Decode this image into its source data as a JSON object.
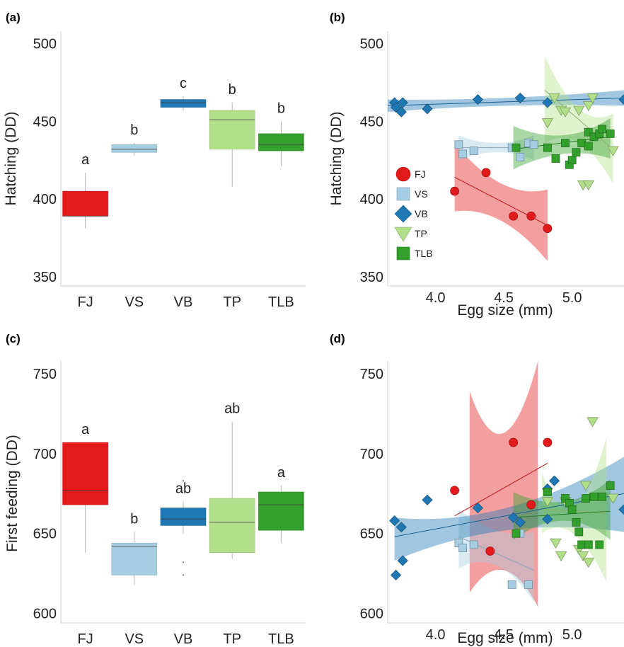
{
  "colors": {
    "FJ": "#e31a1c",
    "VS": "#a6cee3",
    "VB": "#1f78b4",
    "TP": "#b2df8a",
    "TLB": "#33a02c"
  },
  "chart_data": [
    {
      "panel": "(a)",
      "type": "box",
      "categories": [
        "FJ",
        "VS",
        "VB",
        "TP",
        "TLB"
      ],
      "ylabel": "Hatching (DD)",
      "ylim": [
        344,
        508
      ],
      "yticks": [
        350,
        400,
        450,
        500
      ],
      "boxes": [
        {
          "name": "FJ",
          "whisker_low": 381,
          "q1": 389,
          "median": 389,
          "q3": 405,
          "whisker_high": 417,
          "sig": "a"
        },
        {
          "name": "VS",
          "whisker_low": 428,
          "q1": 430,
          "median": 432,
          "q3": 435,
          "whisker_high": 436,
          "sig": "b"
        },
        {
          "name": "VB",
          "whisker_low": 457,
          "q1": 459,
          "median": 462,
          "q3": 464,
          "whisker_high": 466,
          "sig": "c"
        },
        {
          "name": "TP",
          "whisker_low": 408,
          "q1": 432,
          "median": 451,
          "q3": 457,
          "whisker_high": 462,
          "sig": "b"
        },
        {
          "name": "TLB",
          "whisker_low": 421,
          "q1": 431,
          "median": 435,
          "q3": 442,
          "whisker_high": 450,
          "sig": "b"
        }
      ]
    },
    {
      "panel": "(b)",
      "type": "scatter",
      "xlabel": "Egg size (mm)",
      "ylabel": "Hatching (DD)",
      "xlim": [
        3.65,
        5.38
      ],
      "ylim": [
        344,
        508
      ],
      "xticks": [
        "4.0",
        "4.5",
        "5.0"
      ],
      "yticks": [
        350,
        400,
        450,
        500
      ],
      "legend_position": "left",
      "series": [
        {
          "name": "FJ",
          "marker": "circle",
          "points": [
            [
              4.14,
              405
            ],
            [
              4.37,
              417
            ],
            [
              4.57,
              389
            ],
            [
              4.7,
              389
            ],
            [
              4.82,
              381
            ]
          ],
          "fit": [
            [
              4.14,
              414
            ],
            [
              4.82,
              383
            ]
          ],
          "band": [
            [
              4.14,
              436,
              392
            ],
            [
              4.48,
              410,
              386
            ],
            [
              4.82,
              406,
              360
            ]
          ]
        },
        {
          "name": "VS",
          "marker": "square",
          "points": [
            [
              4.17,
              435
            ],
            [
              4.2,
              429
            ],
            [
              4.28,
              431
            ],
            [
              4.56,
              433
            ],
            [
              4.62,
              427
            ],
            [
              4.68,
              436
            ],
            [
              4.72,
              435
            ]
          ],
          "fit": [
            [
              4.17,
              433
            ],
            [
              4.72,
              433
            ]
          ],
          "band": [
            [
              4.17,
              441,
              425
            ],
            [
              4.45,
              436,
              430
            ],
            [
              4.72,
              441,
              425
            ]
          ]
        },
        {
          "name": "VB",
          "marker": "diamond",
          "points": [
            [
              3.7,
              462
            ],
            [
              3.71,
              459
            ],
            [
              3.75,
              456
            ],
            [
              3.76,
              462
            ],
            [
              3.94,
              458
            ],
            [
              4.31,
              464
            ],
            [
              4.62,
              465
            ],
            [
              4.82,
              462
            ],
            [
              5.38,
              464
            ]
          ],
          "fit": [
            [
              3.65,
              460
            ],
            [
              5.38,
              465
            ]
          ],
          "band": [
            [
              3.65,
              464,
              456
            ],
            [
              4.5,
              465,
              460
            ],
            [
              5.38,
              470,
              460
            ]
          ]
        },
        {
          "name": "TP",
          "marker": "triangle",
          "points": [
            [
              4.82,
              449
            ],
            [
              4.87,
              465
            ],
            [
              4.92,
              457
            ],
            [
              4.95,
              456
            ],
            [
              5.05,
              457
            ],
            [
              5.08,
              409
            ],
            [
              5.12,
              409
            ],
            [
              5.12,
              460
            ],
            [
              5.15,
              465
            ],
            [
              5.3,
              431
            ]
          ],
          "fit": [
            [
              4.8,
              470
            ],
            [
              5.3,
              432
            ]
          ],
          "band": [
            [
              4.8,
              492,
              436
            ],
            [
              5.05,
              458,
              436
            ],
            [
              5.3,
              455,
              410
            ]
          ]
        },
        {
          "name": "TLB",
          "marker": "square",
          "points": [
            [
              4.59,
              433
            ],
            [
              4.82,
              433
            ],
            [
              4.88,
              426
            ],
            [
              4.95,
              436
            ],
            [
              4.98,
              422
            ],
            [
              5.0,
              425
            ],
            [
              5.03,
              430
            ],
            [
              5.07,
              436
            ],
            [
              5.12,
              434
            ],
            [
              5.12,
              443
            ],
            [
              5.16,
              440
            ],
            [
              5.2,
              442
            ],
            [
              5.22,
              445
            ],
            [
              5.28,
              442
            ]
          ],
          "fit": [
            [
              4.57,
              432
            ],
            [
              5.28,
              440
            ]
          ],
          "band": [
            [
              4.57,
              447,
              419
            ],
            [
              4.95,
              441,
              429
            ],
            [
              5.28,
              452,
              426
            ]
          ]
        }
      ]
    },
    {
      "panel": "(c)",
      "type": "box",
      "categories": [
        "FJ",
        "VS",
        "VB",
        "TP",
        "TLB"
      ],
      "ylabel": "First feeding (DD)",
      "ylim": [
        594,
        758
      ],
      "yticks": [
        600,
        650,
        700,
        750
      ],
      "boxes": [
        {
          "name": "FJ",
          "whisker_low": 638,
          "q1": 668,
          "median": 677,
          "q3": 707,
          "whisker_high": 707,
          "sig": "a"
        },
        {
          "name": "VS",
          "whisker_low": 618,
          "q1": 624,
          "median": 642,
          "q3": 644,
          "whisker_high": 651,
          "sig": "b"
        },
        {
          "name": "VB",
          "whisker_low": 650,
          "q1": 655,
          "median": 659,
          "q3": 666,
          "whisker_high": 670,
          "outliers": [
            632,
            624,
            683
          ],
          "sig": "ab"
        },
        {
          "name": "TP",
          "whisker_low": 634,
          "q1": 638,
          "median": 657,
          "q3": 672,
          "whisker_high": 720,
          "sig": "ab"
        },
        {
          "name": "TLB",
          "whisker_low": 644,
          "q1": 652,
          "median": 668,
          "q3": 676,
          "whisker_high": 680,
          "sig": "a"
        }
      ]
    },
    {
      "panel": "(d)",
      "type": "scatter",
      "xlabel": "Egg size (mm)",
      "ylabel": "",
      "xlim": [
        3.65,
        5.38
      ],
      "ylim": [
        594,
        758
      ],
      "xticks": [
        "4.0",
        "4.5",
        "5.0"
      ],
      "yticks": [
        600,
        650,
        700,
        750
      ],
      "series": [
        {
          "name": "FJ",
          "marker": "circle",
          "points": [
            [
              4.14,
              677
            ],
            [
              4.4,
              639
            ],
            [
              4.57,
              707
            ],
            [
              4.7,
              668
            ],
            [
              4.82,
              707
            ]
          ],
          "fit": [
            [
              4.14,
              661
            ],
            [
              4.82,
              694
            ]
          ],
          "band": [
            [
              4.25,
              739,
              613
            ],
            [
              4.5,
              713,
              627
            ],
            [
              4.75,
              758,
              604
            ]
          ]
        },
        {
          "name": "VS",
          "marker": "square",
          "points": [
            [
              4.17,
              644
            ],
            [
              4.2,
              641
            ],
            [
              4.28,
              643
            ],
            [
              4.56,
              618
            ],
            [
              4.62,
              650
            ],
            [
              4.68,
              618
            ]
          ],
          "fit": [
            [
              4.17,
              648
            ],
            [
              4.72,
              627
            ]
          ],
          "band": [
            [
              4.17,
              665,
              628
            ],
            [
              4.45,
              652,
              630
            ],
            [
              4.72,
              651,
              607
            ]
          ]
        },
        {
          "name": "VB",
          "marker": "diamond",
          "points": [
            [
              3.7,
              658
            ],
            [
              3.71,
              624
            ],
            [
              3.75,
              654
            ],
            [
              3.76,
              633
            ],
            [
              3.94,
              671
            ],
            [
              4.31,
              666
            ],
            [
              4.57,
              660
            ],
            [
              4.62,
              657
            ],
            [
              4.82,
              678
            ],
            [
              4.82,
              659
            ],
            [
              4.87,
              683
            ],
            [
              5.38,
              665
            ]
          ],
          "fit": [
            [
              3.7,
              648
            ],
            [
              5.38,
              675
            ]
          ],
          "band": [
            [
              3.7,
              660,
              633
            ],
            [
              4.5,
              666,
              652
            ],
            [
              5.38,
              698,
              651
            ]
          ]
        },
        {
          "name": "TP",
          "marker": "triangle",
          "points": [
            [
              4.82,
              670
            ],
            [
              4.88,
              644
            ],
            [
              4.92,
              636
            ],
            [
              4.95,
              670
            ],
            [
              5.05,
              640
            ],
            [
              5.08,
              636
            ],
            [
              5.1,
              680
            ],
            [
              5.12,
              632
            ],
            [
              5.15,
              720
            ],
            [
              5.3,
              672
            ]
          ],
          "fit": [
            [
              4.78,
              665
            ],
            [
              5.25,
              663
            ]
          ],
          "band": [
            [
              4.78,
              688,
              650
            ],
            [
              5.0,
              666,
              650
            ],
            [
              5.25,
              710,
              620
            ]
          ]
        },
        {
          "name": "TLB",
          "marker": "square",
          "points": [
            [
              4.59,
              650
            ],
            [
              4.82,
              676
            ],
            [
              4.95,
              672
            ],
            [
              4.98,
              669
            ],
            [
              5.0,
              665
            ],
            [
              5.03,
              657
            ],
            [
              5.05,
              651
            ],
            [
              5.07,
              643
            ],
            [
              5.1,
              672
            ],
            [
              5.12,
              643
            ],
            [
              5.16,
              673
            ],
            [
              5.2,
              643
            ],
            [
              5.22,
              673
            ],
            [
              5.28,
              680
            ]
          ],
          "fit": [
            [
              4.57,
              660
            ],
            [
              5.28,
              664
            ]
          ],
          "band": [
            [
              4.57,
              676,
              646
            ],
            [
              4.95,
              670,
              658
            ],
            [
              5.28,
              684,
              646
            ]
          ]
        }
      ]
    }
  ]
}
